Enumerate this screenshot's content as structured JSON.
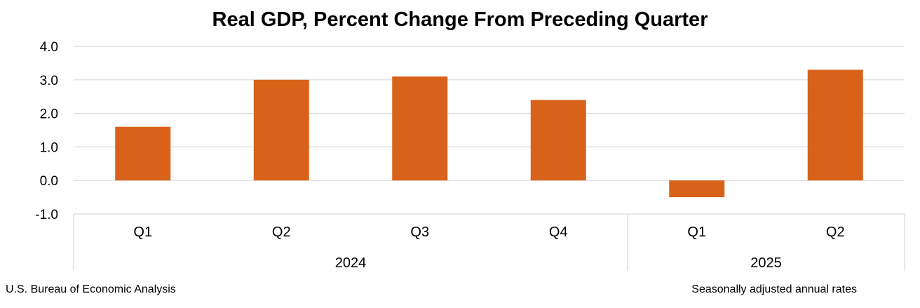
{
  "chart_data": {
    "type": "bar",
    "title": "Real GDP, Percent Change From Preceding Quarter",
    "xlabel": "",
    "ylabel": "",
    "ylim": [
      -1.0,
      4.0
    ],
    "yticks": [
      "4.0",
      "3.0",
      "2.0",
      "1.0",
      "0.0",
      "-1.0"
    ],
    "ytick_values": [
      4.0,
      3.0,
      2.0,
      1.0,
      0.0,
      -1.0
    ],
    "grid": true,
    "categories": [
      "Q1",
      "Q2",
      "Q3",
      "Q4",
      "Q1",
      "Q2"
    ],
    "groups": [
      {
        "label": "2024",
        "count": 4
      },
      {
        "label": "2025",
        "count": 2
      }
    ],
    "values": [
      1.6,
      3.0,
      3.1,
      2.4,
      -0.5,
      3.3
    ],
    "bar_color": "#D9621B",
    "grid_color": "#D9D9D9"
  },
  "footer": {
    "source": "U.S. Bureau of Economic Analysis",
    "note": "Seasonally adjusted annual rates"
  }
}
